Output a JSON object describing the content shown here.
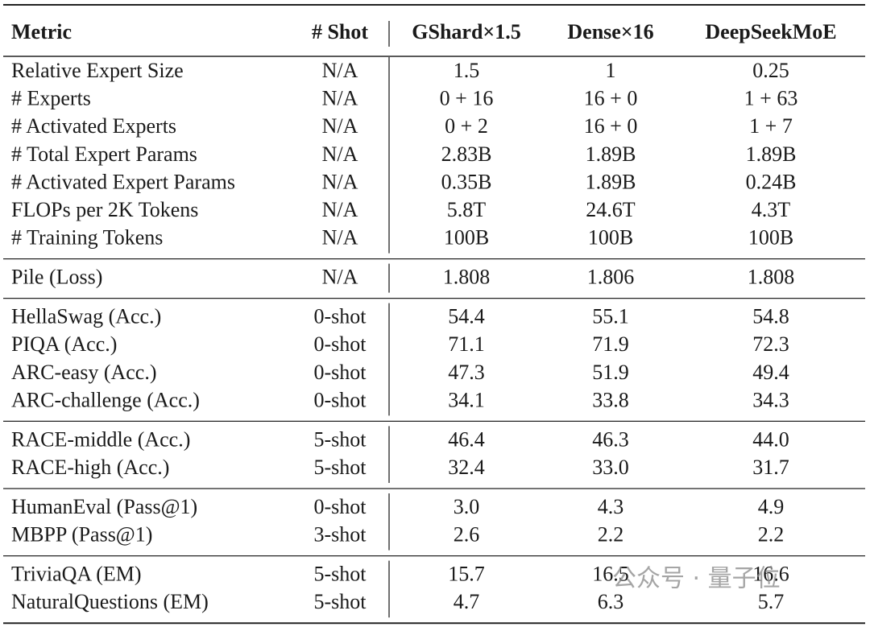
{
  "header": [
    "Metric",
    "# Shot",
    "GShard×1.5",
    "Dense×16",
    "DeepSeekMoE"
  ],
  "groups": [
    [
      [
        "Relative Expert Size",
        "N/A",
        "1.5",
        "1",
        "0.25"
      ],
      [
        "# Experts",
        "N/A",
        "0 + 16",
        "16 + 0",
        "1 + 63"
      ],
      [
        "# Activated Experts",
        "N/A",
        "0 + 2",
        "16 + 0",
        "1 + 7"
      ],
      [
        "# Total Expert Params",
        "N/A",
        "2.83B",
        "1.89B",
        "1.89B"
      ],
      [
        "# Activated Expert Params",
        "N/A",
        "0.35B",
        "1.89B",
        "0.24B"
      ],
      [
        "FLOPs per 2K Tokens",
        "N/A",
        "5.8T",
        "24.6T",
        "4.3T"
      ],
      [
        "# Training Tokens",
        "N/A",
        "100B",
        "100B",
        "100B"
      ]
    ],
    [
      [
        "Pile (Loss)",
        "N/A",
        "1.808",
        "1.806",
        "1.808"
      ]
    ],
    [
      [
        "HellaSwag (Acc.)",
        "0-shot",
        "54.4",
        "55.1",
        "54.8"
      ],
      [
        "PIQA (Acc.)",
        "0-shot",
        "71.1",
        "71.9",
        "72.3"
      ],
      [
        "ARC-easy (Acc.)",
        "0-shot",
        "47.3",
        "51.9",
        "49.4"
      ],
      [
        "ARC-challenge (Acc.)",
        "0-shot",
        "34.1",
        "33.8",
        "34.3"
      ]
    ],
    [
      [
        "RACE-middle (Acc.)",
        "5-shot",
        "46.4",
        "46.3",
        "44.0"
      ],
      [
        "RACE-high (Acc.)",
        "5-shot",
        "32.4",
        "33.0",
        "31.7"
      ]
    ],
    [
      [
        "HumanEval (Pass@1)",
        "0-shot",
        "3.0",
        "4.3",
        "4.9"
      ],
      [
        "MBPP (Pass@1)",
        "3-shot",
        "2.6",
        "2.2",
        "2.2"
      ]
    ],
    [
      [
        "TriviaQA (EM)",
        "5-shot",
        "15.7",
        "16.5",
        "16.6"
      ],
      [
        "NaturalQuestions (EM)",
        "5-shot",
        "4.7",
        "6.3",
        "5.7"
      ]
    ]
  ],
  "watermark": "公众号 · 量子位"
}
